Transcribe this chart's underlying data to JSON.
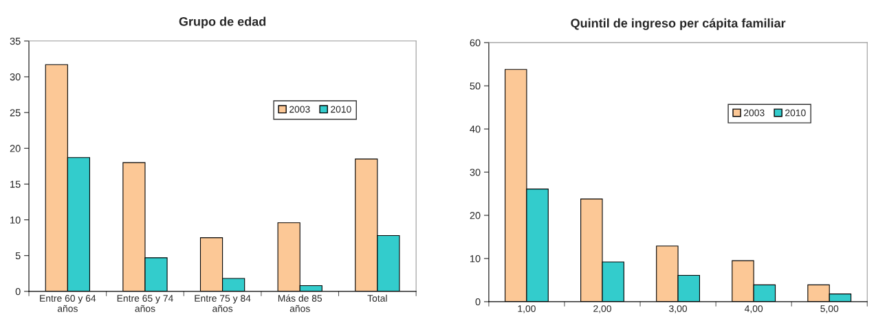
{
  "chart_data": [
    {
      "type": "bar",
      "title": "Grupo de edad",
      "categories": [
        "Entre 60 y 64\naños",
        "Entre 65 y 74\naños",
        "Entre 75 y 84\naños",
        "Más de 85\naños",
        "Total"
      ],
      "series": [
        {
          "name": "2003",
          "color": "#fcc896",
          "values": [
            31.7,
            18.0,
            7.5,
            9.6,
            18.5
          ]
        },
        {
          "name": "2010",
          "color": "#33cccc",
          "values": [
            18.7,
            4.7,
            1.8,
            0.8,
            7.8
          ]
        }
      ],
      "ylim": [
        0,
        35
      ],
      "yticks": [
        0,
        5,
        10,
        15,
        20,
        25,
        30,
        35
      ],
      "grid": false,
      "legend": "top right"
    },
    {
      "type": "bar",
      "title": "Quintil de ingreso per cápita familiar",
      "categories": [
        "1,00",
        "2,00",
        "3,00",
        "4,00",
        "5,00"
      ],
      "series": [
        {
          "name": "2003",
          "color": "#fcc896",
          "values": [
            53.8,
            23.8,
            12.9,
            9.5,
            3.9
          ]
        },
        {
          "name": "2010",
          "color": "#33cccc",
          "values": [
            26.1,
            9.2,
            6.1,
            3.9,
            1.8
          ]
        }
      ],
      "ylim": [
        0,
        60
      ],
      "yticks": [
        0,
        10,
        20,
        30,
        40,
        50,
        60
      ],
      "grid": false,
      "legend": "top right"
    }
  ]
}
